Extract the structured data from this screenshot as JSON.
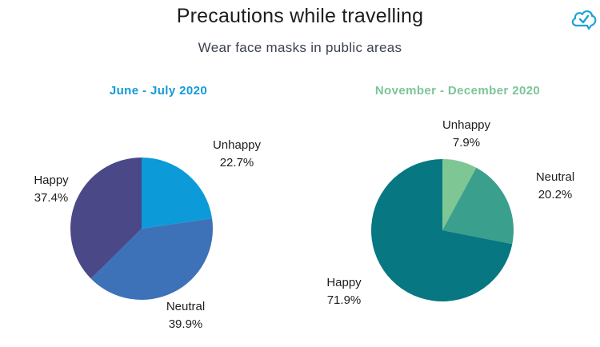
{
  "header": {
    "title": "Precautions while travelling",
    "subtitle": "Wear face masks in public areas"
  },
  "logo": {
    "icon": "cloud-check-icon",
    "color": "#1aa3d9"
  },
  "chart_data": [
    {
      "type": "pie",
      "title": "June - July 2020",
      "title_color": "#129ad9",
      "slices": [
        {
          "label": "Unhappy",
          "value": 22.7,
          "value_label": "22.7%",
          "color": "#0d9ad9"
        },
        {
          "label": "Neutral",
          "value": 39.9,
          "value_label": "39.9%",
          "color": "#3d72b8"
        },
        {
          "label": "Happy",
          "value": 37.4,
          "value_label": "37.4%",
          "color": "#4a4887"
        }
      ]
    },
    {
      "type": "pie",
      "title": "November - December 2020",
      "title_color": "#7bc597",
      "slices": [
        {
          "label": "Unhappy",
          "value": 7.9,
          "value_label": "7.9%",
          "color": "#7ec693"
        },
        {
          "label": "Neutral",
          "value": 20.2,
          "value_label": "20.2%",
          "color": "#3b9f8d"
        },
        {
          "label": "Happy",
          "value": 71.9,
          "value_label": "71.9%",
          "color": "#077781"
        }
      ]
    }
  ]
}
